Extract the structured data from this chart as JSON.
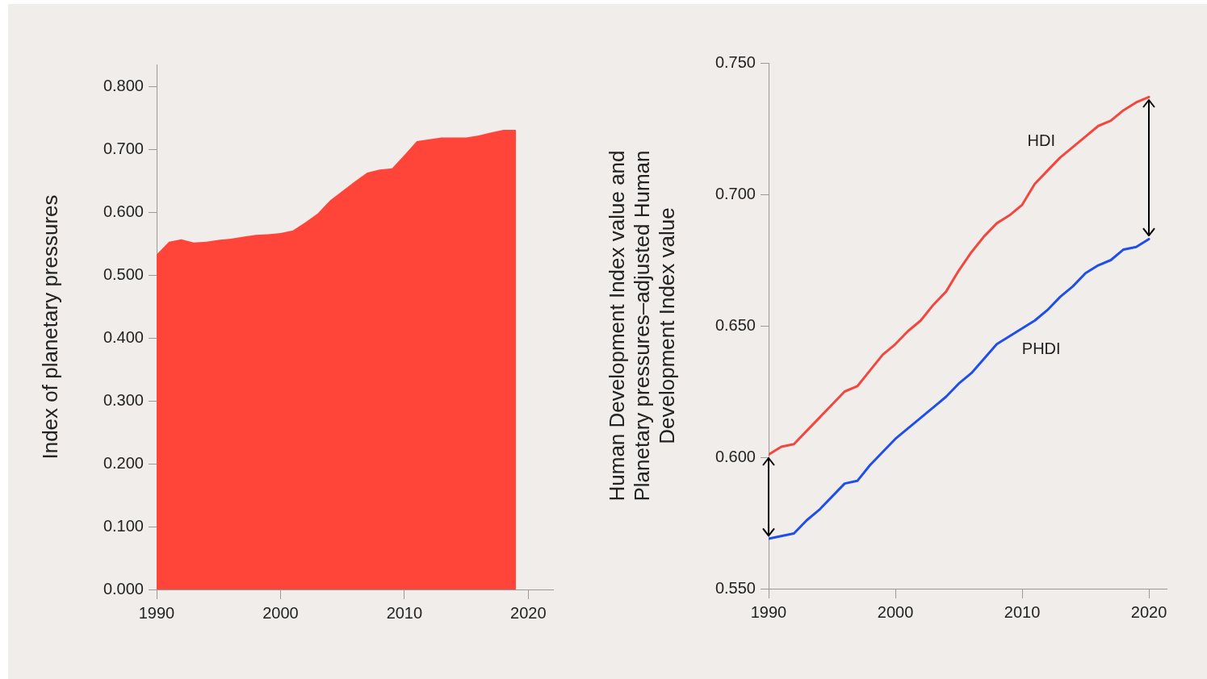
{
  "chart_data": [
    {
      "type": "area",
      "ylabel": "Index of planetary pressures",
      "color": "#ff453a",
      "x": [
        1990,
        1991,
        1992,
        1993,
        1994,
        1995,
        1996,
        1997,
        1998,
        1999,
        2000,
        2001,
        2002,
        2003,
        2004,
        2005,
        2006,
        2007,
        2008,
        2009,
        2010,
        2011,
        2012,
        2013,
        2014,
        2015,
        2016,
        2017,
        2018,
        2019
      ],
      "values": [
        0.533,
        0.553,
        0.557,
        0.552,
        0.553,
        0.556,
        0.558,
        0.561,
        0.564,
        0.565,
        0.567,
        0.571,
        0.584,
        0.598,
        0.619,
        0.634,
        0.649,
        0.663,
        0.668,
        0.67,
        0.691,
        0.713,
        0.716,
        0.719,
        0.719,
        0.719,
        0.722,
        0.727,
        0.731,
        0.731
      ],
      "xlim": [
        1990,
        2022
      ],
      "xticks": [
        1990,
        2000,
        2010,
        2020
      ],
      "ylim": [
        0,
        0.835
      ],
      "yticks": [
        {
          "value": 0,
          "label": "0.000"
        },
        {
          "value": 0.1,
          "label": "0.100"
        },
        {
          "value": 0.2,
          "label": "0.200"
        },
        {
          "value": 0.3,
          "label": "0.300"
        },
        {
          "value": 0.4,
          "label": "0.400"
        },
        {
          "value": 0.5,
          "label": "0.500"
        },
        {
          "value": 0.6,
          "label": "0.600"
        },
        {
          "value": 0.7,
          "label": "0.700"
        },
        {
          "value": 0.8,
          "label": "0.800"
        }
      ],
      "grid": false,
      "legend": false
    },
    {
      "type": "line",
      "ylabel": "Human Development Index value and Planetary pressures–adjusted Human Development Index value",
      "x": [
        1990,
        1991,
        1992,
        1993,
        1994,
        1995,
        1996,
        1997,
        1998,
        1999,
        2000,
        2001,
        2002,
        2003,
        2004,
        2005,
        2006,
        2007,
        2008,
        2009,
        2010,
        2011,
        2012,
        2013,
        2014,
        2015,
        2016,
        2017,
        2018,
        2019,
        2020
      ],
      "series": [
        {
          "name": "HDI",
          "color": "#f2473f",
          "values": [
            0.601,
            0.604,
            0.605,
            0.61,
            0.615,
            0.62,
            0.625,
            0.627,
            0.633,
            0.639,
            0.643,
            0.648,
            0.652,
            0.658,
            0.663,
            0.671,
            0.678,
            0.684,
            0.689,
            0.692,
            0.696,
            0.704,
            0.709,
            0.714,
            0.718,
            0.722,
            0.726,
            0.728,
            0.732,
            0.735,
            0.737
          ]
        },
        {
          "name": "PHDI",
          "color": "#1f4fe8",
          "values": [
            0.569,
            0.57,
            0.571,
            0.576,
            0.58,
            0.585,
            0.59,
            0.591,
            0.597,
            0.602,
            0.607,
            0.611,
            0.615,
            0.619,
            0.623,
            0.628,
            0.632,
            0.6375,
            0.643,
            0.646,
            0.649,
            0.652,
            0.656,
            0.661,
            0.665,
            0.67,
            0.673,
            0.675,
            0.679,
            0.68,
            0.683
          ]
        }
      ],
      "xlim": [
        1990,
        2021.4
      ],
      "xticks": [
        1990,
        2000,
        2010,
        2020
      ],
      "ylim": [
        0.55,
        0.75
      ],
      "yticks": [
        {
          "value": 0.55,
          "label": "0.550"
        },
        {
          "value": 0.6,
          "label": "0.600"
        },
        {
          "value": 0.65,
          "label": "0.650"
        },
        {
          "value": 0.7,
          "label": "0.700"
        },
        {
          "value": 0.75,
          "label": "0.750"
        }
      ],
      "grid": false,
      "legend": false,
      "line_style": "solid",
      "marker": "none"
    }
  ]
}
